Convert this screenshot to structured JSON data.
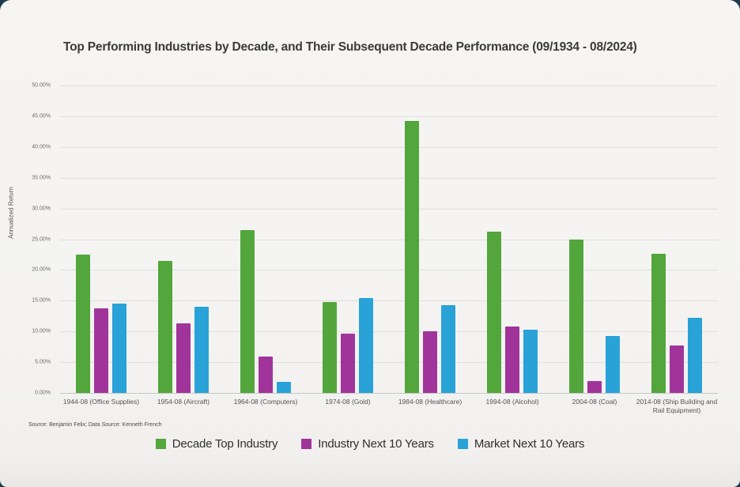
{
  "page": {
    "background_color": "#203D4F",
    "card_color": "#F4F3F1"
  },
  "title": "Top Performing Industries by Decade, and Their Subsequent Decade Performance (09/1934 - 08/2024)",
  "source_note": "Source: Benjamin Felix; Data Source: Kenneth French",
  "chart_data": {
    "type": "bar",
    "title": "Top Performing Industries by Decade, and Their Subsequent Decade Performance (09/1934 - 08/2024)",
    "xlabel": "",
    "ylabel": "Annualized Return",
    "ylim": [
      0,
      50
    ],
    "ytick_step": 5,
    "ytick_format": "percent_2dp",
    "grid": true,
    "legend_position": "bottom",
    "categories": [
      "1944-08 (Office Supplies)",
      "1954-08 (Aircraft)",
      "1964-08 (Computers)",
      "1974-08 (Gold)",
      "1984-08 (Healthcare)",
      "1994-08 (Alcohol)",
      "2004-08 (Coal)",
      "2014-08 (Ship Building and Rail Equipment)"
    ],
    "series": [
      {
        "name": "Decade Top Industry",
        "color": "#52A63C",
        "values": [
          22.5,
          21.5,
          26.5,
          14.8,
          44.2,
          26.2,
          24.9,
          22.6
        ]
      },
      {
        "name": "Industry Next 10 Years",
        "color": "#A1349B",
        "values": [
          13.8,
          11.3,
          5.9,
          9.7,
          10.0,
          10.8,
          1.9,
          7.7
        ]
      },
      {
        "name": "Market Next 10 Years",
        "color": "#29A2D8",
        "values": [
          14.5,
          14.0,
          1.8,
          15.4,
          14.3,
          10.3,
          9.2,
          12.2
        ]
      }
    ]
  }
}
